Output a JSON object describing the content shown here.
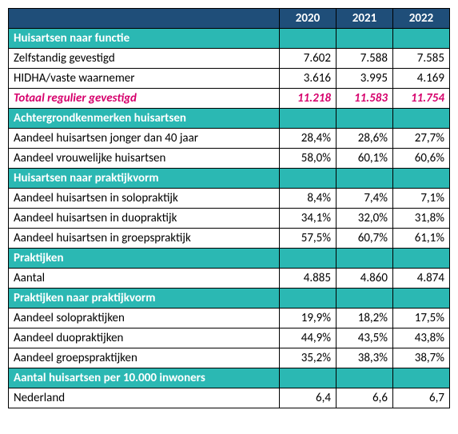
{
  "colors": {
    "header_bg": "#1f4e79",
    "section_bg": "#2bb8b3",
    "totals_text": "#d6006c",
    "white": "#ffffff",
    "black": "#000000"
  },
  "years": [
    "2020",
    "2021",
    "2022"
  ],
  "sections": [
    {
      "title": "Huisartsen naar functie",
      "rows": [
        {
          "label": "Zelfstandig gevestigd",
          "v": [
            "7.602",
            "7.588",
            "7.585"
          ]
        },
        {
          "label": "HIDHA/vaste waarnemer",
          "v": [
            "3.616",
            "3.995",
            "4.169"
          ]
        },
        {
          "label": "Totaal regulier gevestigd",
          "v": [
            "11.218",
            "11.583",
            "11.754"
          ],
          "totals": true
        }
      ]
    },
    {
      "title": "Achtergrondkenmerken huisartsen",
      "rows": [
        {
          "label": "Aandeel huisartsen jonger dan 40 jaar",
          "v": [
            "28,4%",
            "28,6%",
            "27,7%"
          ]
        },
        {
          "label": "Aandeel vrouwelijke huisartsen",
          "v": [
            "58,0%",
            "60,1%",
            "60,6%"
          ]
        }
      ]
    },
    {
      "title": "Huisartsen naar praktijkvorm",
      "rows": [
        {
          "label": "Aandeel huisartsen in solopraktijk",
          "v": [
            "8,4%",
            "7,4%",
            "7,1%"
          ]
        },
        {
          "label": "Aandeel huisartsen in duopraktijk",
          "v": [
            "34,1%",
            "32,0%",
            "31,8%"
          ]
        },
        {
          "label": "Aandeel huisartsen in groepspraktijk",
          "v": [
            "57,5%",
            "60,7%",
            "61,1%"
          ]
        }
      ]
    },
    {
      "title": "Praktijken",
      "rows": [
        {
          "label": "Aantal",
          "v": [
            "4.885",
            "4.860",
            "4.874"
          ]
        }
      ]
    },
    {
      "title": "Praktijken naar praktijkvorm",
      "rows": [
        {
          "label": "Aandeel solopraktijken",
          "v": [
            "19,9%",
            "18,2%",
            "17,5%"
          ]
        },
        {
          "label": "Aandeel duopraktijken",
          "v": [
            "44,9%",
            "43,5%",
            "43,8%"
          ]
        },
        {
          "label": "Aandeel groepspraktijken",
          "v": [
            "35,2%",
            "38,3%",
            "38,7%"
          ]
        }
      ]
    },
    {
      "title": "Aantal huisartsen per 10.000 inwoners",
      "rows": [
        {
          "label": "Nederland",
          "v": [
            "6,4",
            "6,6",
            "6,7"
          ]
        }
      ]
    }
  ]
}
